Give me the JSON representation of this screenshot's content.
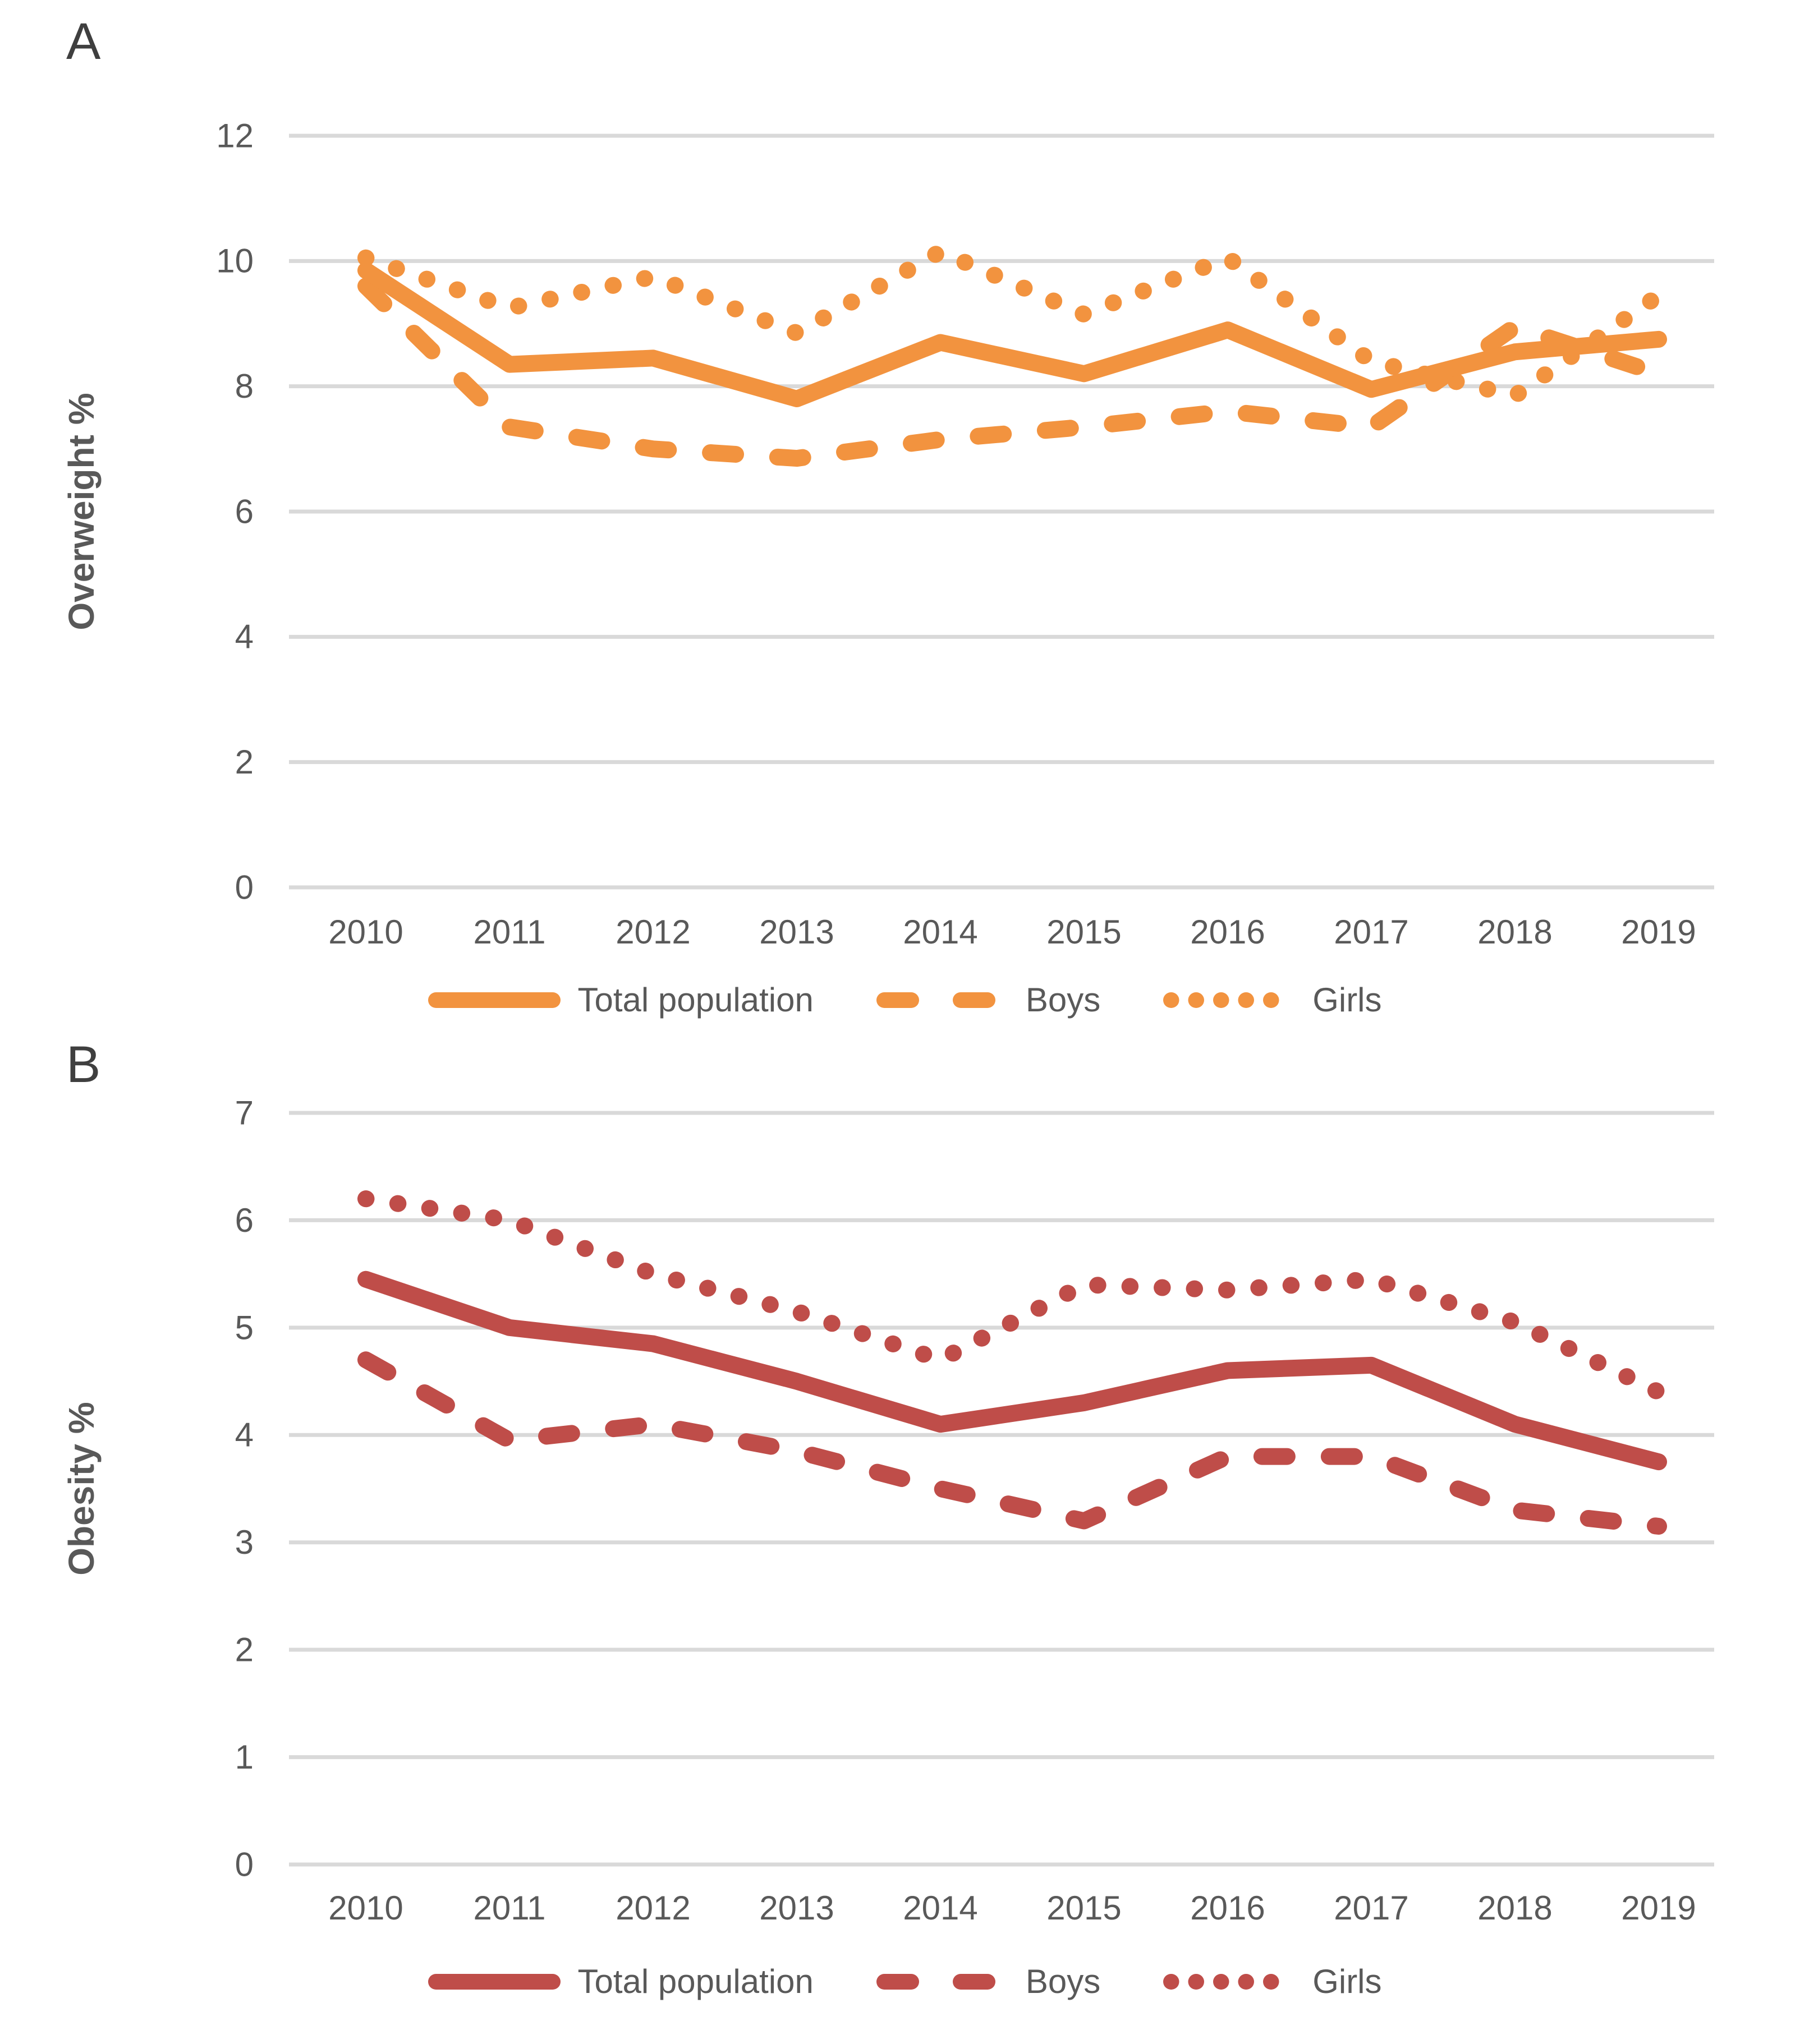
{
  "page": {
    "background": "#ffffff"
  },
  "colors": {
    "panel_a_accent": "#F2933F",
    "panel_b_accent": "#BF4D49",
    "text": "#595959",
    "gridline": "#D9D9D9",
    "panel_letter": "#3f3f3f"
  },
  "panels": [
    {
      "panel_label": "A"
    },
    {
      "panel_label": "B"
    }
  ],
  "chart_data": [
    {
      "type": "line",
      "title": "",
      "xlabel": "",
      "ylabel": "Overweight %",
      "x": [
        "2010",
        "2011",
        "2012",
        "2013",
        "2014",
        "2015",
        "2016",
        "2017",
        "2018",
        "2019"
      ],
      "ylim": [
        0,
        12
      ],
      "yticks": [
        0,
        2,
        4,
        6,
        8,
        10,
        12
      ],
      "grid": true,
      "legend_position": "bottom",
      "accent_color": "#F2933F",
      "series": [
        {
          "name": "Total population",
          "style": "solid",
          "values": [
            9.85,
            8.35,
            8.45,
            7.8,
            8.7,
            8.2,
            8.9,
            7.95,
            8.55,
            8.75
          ]
        },
        {
          "name": "Boys",
          "style": "dashed",
          "values": [
            9.6,
            7.35,
            7.0,
            6.85,
            7.15,
            7.35,
            7.6,
            7.35,
            8.95,
            8.2
          ]
        },
        {
          "name": "Girls",
          "style": "dotted",
          "values": [
            10.05,
            9.25,
            9.75,
            8.85,
            10.15,
            9.15,
            10.05,
            8.4,
            7.85,
            9.45
          ]
        }
      ]
    },
    {
      "type": "line",
      "title": "",
      "xlabel": "",
      "ylabel": "Obesity %",
      "x": [
        "2010",
        "2011",
        "2012",
        "2013",
        "2014",
        "2015",
        "2016",
        "2017",
        "2018",
        "2019"
      ],
      "ylim": [
        0,
        7
      ],
      "yticks": [
        0,
        1,
        2,
        3,
        4,
        5,
        6,
        7
      ],
      "grid": true,
      "legend_position": "bottom",
      "accent_color": "#BF4D49",
      "series": [
        {
          "name": "Total population",
          "style": "solid",
          "values": [
            5.45,
            5.0,
            4.85,
            4.5,
            4.1,
            4.3,
            4.6,
            4.65,
            4.1,
            3.75
          ]
        },
        {
          "name": "Boys",
          "style": "dashed",
          "values": [
            4.7,
            3.95,
            4.1,
            3.85,
            3.5,
            3.2,
            3.8,
            3.8,
            3.3,
            3.15
          ]
        },
        {
          "name": "Girls",
          "style": "dotted",
          "values": [
            6.2,
            6.0,
            5.5,
            5.15,
            4.7,
            5.4,
            5.35,
            5.45,
            5.05,
            4.4
          ]
        }
      ]
    }
  ]
}
